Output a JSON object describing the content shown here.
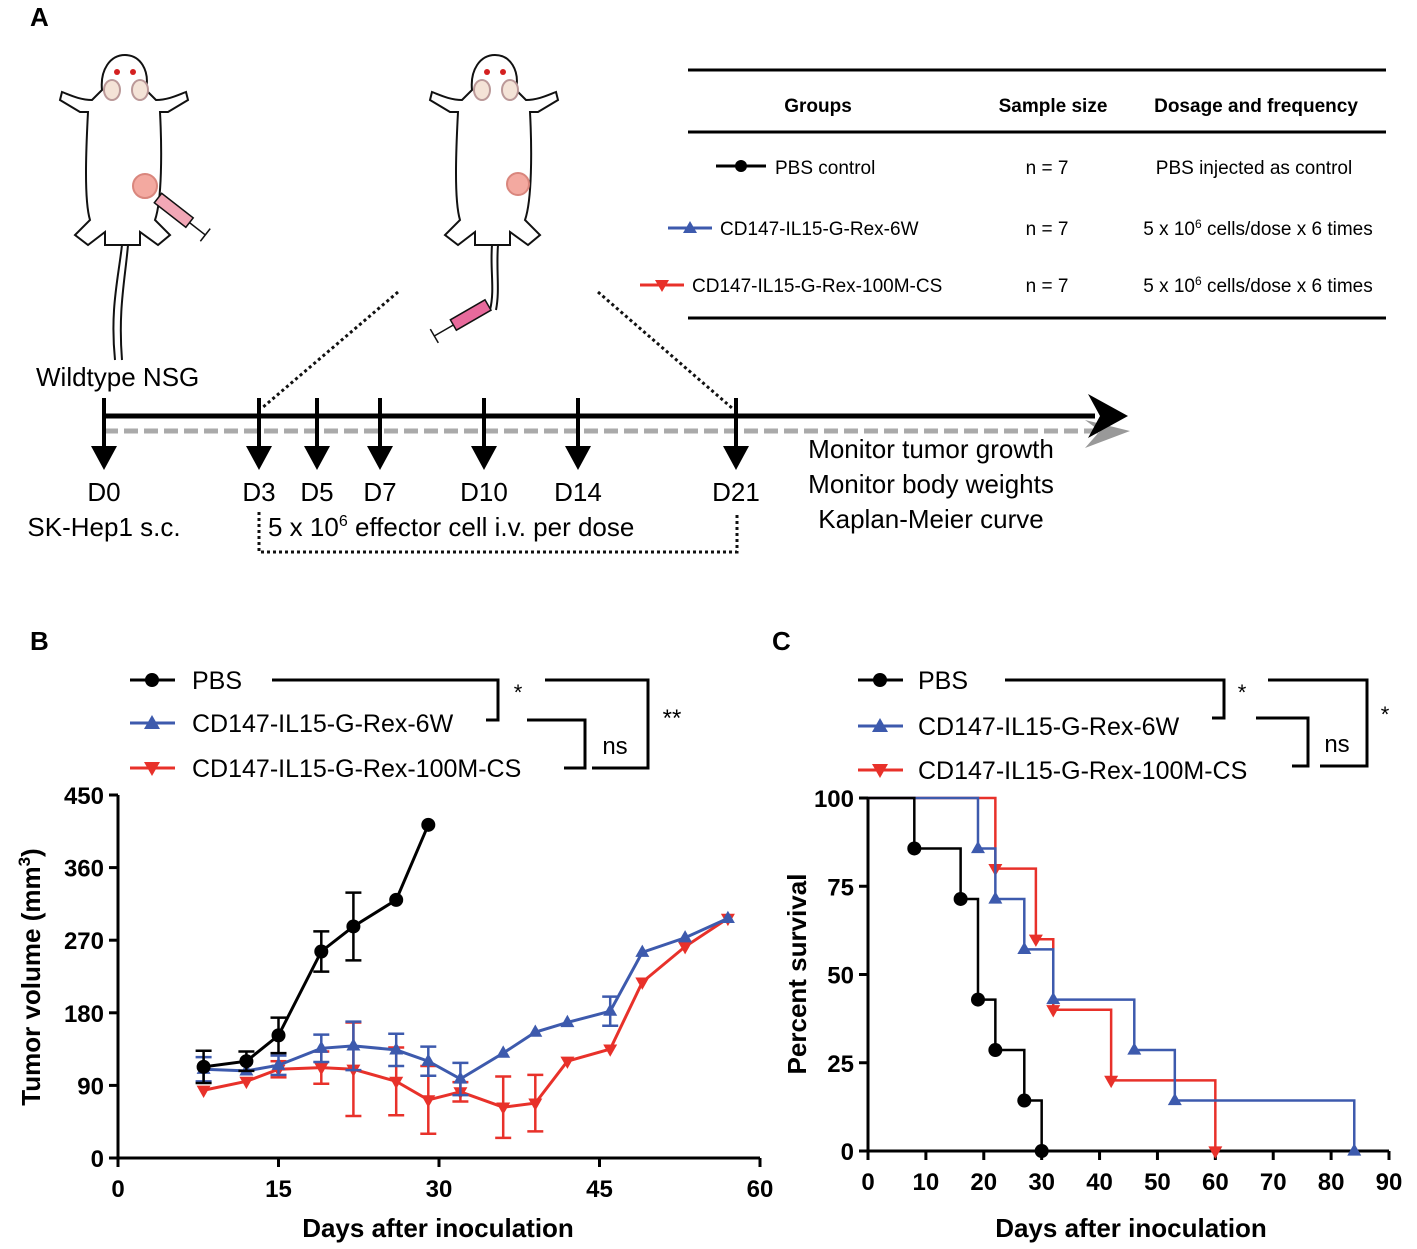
{
  "panels": {
    "a": "A",
    "b": "B",
    "c": "C"
  },
  "colors": {
    "pbs": "#000000",
    "g6w": "#3d5aad",
    "g100m": "#e8312a",
    "mouse_red": "#d42020",
    "syringe": "#f2a7b6"
  },
  "schema": {
    "table": {
      "headers": [
        "Groups",
        "Sample size",
        "Dosage and frequency"
      ],
      "rows": [
        {
          "group": "PBS control",
          "n": "n = 7",
          "dose": "PBS injected as control",
          "marker": "circle"
        },
        {
          "group": "CD147-IL15-G-Rex-6W",
          "n": "n = 7",
          "dose_base": "5 x 10",
          "dose_exp": "6",
          "dose_tail": " cells/dose x 6 times",
          "marker": "triangle-up"
        },
        {
          "group": "CD147-IL15-G-Rex-100M-CS",
          "n": "n = 7",
          "dose_base": "5 x 10",
          "dose_exp": "6",
          "dose_tail": " cells/dose x 6 times",
          "marker": "triangle-down"
        }
      ]
    },
    "mouse_label": "Wildtype NSG",
    "days": [
      "D0",
      "D3",
      "D5",
      "D7",
      "D10",
      "D14",
      "D21"
    ],
    "d0_sub": "SK-Hep1 s.c.",
    "dose_base": "5 x 10",
    "dose_exp": "6",
    "dose_tail": " effector cell i.v. per dose",
    "monitor": [
      "Monitor tumor growth",
      "Monitor body weights",
      "Kaplan-Meier curve"
    ]
  },
  "chart_data": [
    {
      "type": "line",
      "panel": "B",
      "title": "",
      "xlabel": "Days after inoculation",
      "ylabel_main": "Tumor volume (mm",
      "ylabel_exp": "3",
      "ylabel_end": ")",
      "xlim": [
        0,
        60
      ],
      "ylim": [
        0,
        450
      ],
      "xticks": [
        0,
        15,
        30,
        45,
        60
      ],
      "yticks": [
        0,
        90,
        180,
        270,
        360,
        450
      ],
      "series": [
        {
          "name": "PBS",
          "color": "#000000",
          "marker": "circle",
          "x": [
            8,
            12,
            15,
            19,
            22,
            26,
            29
          ],
          "y": [
            113,
            120,
            152,
            256,
            287,
            320,
            413
          ],
          "err": [
            20,
            12,
            22,
            25,
            42,
            0,
            0
          ]
        },
        {
          "name": "CD147-IL15-G-Rex-6W",
          "color": "#3d5aad",
          "marker": "triangle-up",
          "x": [
            8,
            12,
            15,
            19,
            22,
            26,
            29,
            32,
            36,
            39,
            42,
            46,
            49,
            53,
            57
          ],
          "y": [
            110,
            108,
            115,
            136,
            139,
            134,
            120,
            98,
            130,
            156,
            168,
            182,
            255,
            273,
            297
          ],
          "err": [
            15,
            0,
            12,
            17,
            30,
            20,
            18,
            20,
            0,
            0,
            0,
            18,
            0,
            0,
            0
          ]
        },
        {
          "name": "CD147-IL15-G-Rex-100M-CS",
          "color": "#e8312a",
          "marker": "triangle-down",
          "x": [
            8,
            12,
            15,
            19,
            22,
            26,
            29,
            32,
            36,
            39,
            42,
            46,
            49,
            53,
            57
          ],
          "y": [
            84,
            95,
            110,
            112,
            110,
            95,
            72,
            82,
            63,
            68,
            120,
            135,
            218,
            262,
            297
          ],
          "err": [
            0,
            0,
            10,
            20,
            58,
            42,
            42,
            12,
            38,
            35,
            0,
            0,
            0,
            0,
            0
          ]
        }
      ],
      "legend": [
        "PBS",
        "CD147-IL15-G-Rex-6W",
        "CD147-IL15-G-Rex-100M-CS"
      ],
      "significance": [
        "*",
        "ns",
        "**"
      ]
    },
    {
      "type": "line",
      "panel": "C",
      "subtype": "kaplan-meier step",
      "title": "",
      "xlabel": "Days after inoculation",
      "ylabel": "Percent survival",
      "xlim": [
        0,
        90
      ],
      "ylim": [
        0,
        100
      ],
      "xticks": [
        0,
        10,
        20,
        30,
        40,
        50,
        60,
        70,
        80,
        90
      ],
      "yticks": [
        0,
        25,
        50,
        75,
        100
      ],
      "series": [
        {
          "name": "PBS",
          "color": "#000000",
          "marker": "circle",
          "x": [
            0,
            8,
            16,
            19,
            22,
            27,
            30
          ],
          "y": [
            100,
            85.7,
            71.4,
            42.9,
            28.6,
            14.3,
            0
          ]
        },
        {
          "name": "CD147-IL15-G-Rex-6W",
          "color": "#3d5aad",
          "marker": "triangle-up",
          "x": [
            0,
            19,
            22,
            27,
            32,
            46,
            53,
            84
          ],
          "y": [
            100,
            85.7,
            71.4,
            57.1,
            42.9,
            28.6,
            14.3,
            0
          ]
        },
        {
          "name": "CD147-IL15-G-Rex-100M-CS",
          "color": "#e8312a",
          "marker": "triangle-down",
          "x": [
            0,
            22,
            29,
            32,
            42,
            60
          ],
          "y": [
            100,
            80,
            60,
            40,
            20,
            0
          ]
        }
      ],
      "legend": [
        "PBS",
        "CD147-IL15-G-Rex-6W",
        "CD147-IL15-G-Rex-100M-CS"
      ],
      "significance": [
        "*",
        "ns",
        "*"
      ]
    }
  ]
}
